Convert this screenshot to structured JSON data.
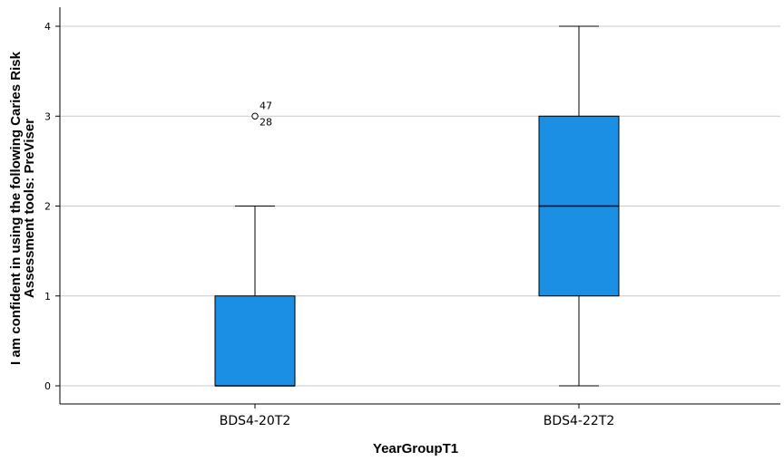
{
  "chart_data": {
    "type": "boxplot",
    "title": "",
    "xlabel": "YearGroupT1",
    "ylabel_lines": [
      "I am confident in using the following Caries Risk",
      "Assessment tools: PreViser"
    ],
    "ylim": [
      0,
      4
    ],
    "yticks": [
      0,
      1,
      2,
      3,
      4
    ],
    "grid": true,
    "categories": [
      "BDS4-20T2",
      "BDS4-22T2"
    ],
    "boxes": [
      {
        "category": "BDS4-20T2",
        "whisker_low": 0,
        "q1": 0,
        "median": 0,
        "q3": 1,
        "whisker_high": 2,
        "outliers": [
          {
            "value": 3,
            "labels": [
              "47",
              "28"
            ]
          }
        ]
      },
      {
        "category": "BDS4-22T2",
        "whisker_low": 0,
        "q1": 1,
        "median": 2,
        "q3": 3,
        "whisker_high": 4,
        "outliers": []
      }
    ],
    "box_color": "#1a8fe3"
  }
}
